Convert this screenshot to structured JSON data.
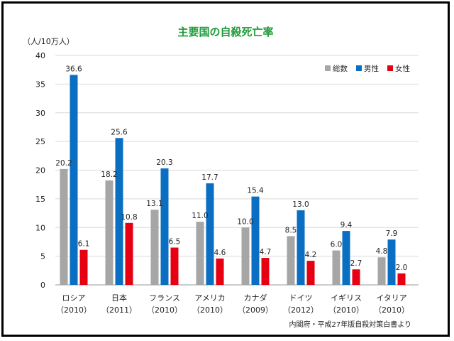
{
  "chart_data": {
    "type": "bar",
    "title": "主要国の自殺死亡率",
    "ylabel": "（人/10万人）",
    "ylim": [
      0,
      40
    ],
    "yticks": [
      0,
      5,
      10,
      15,
      20,
      25,
      30,
      35,
      40
    ],
    "grid": true,
    "legend_position": "top-right",
    "categories": [
      {
        "name": "ロシア",
        "year": "（2010）"
      },
      {
        "name": "日本",
        "year": "（2011）"
      },
      {
        "name": "フランス",
        "year": "（2010）"
      },
      {
        "name": "アメリカ",
        "year": "（2010）"
      },
      {
        "name": "カナダ",
        "year": "（2009）"
      },
      {
        "name": "ドイツ",
        "year": "（2012）"
      },
      {
        "name": "イギリス",
        "year": "（2010）"
      },
      {
        "name": "イタリア",
        "year": "（2010）"
      }
    ],
    "series": [
      {
        "name": "総数",
        "color": "#a6a6a6",
        "values": [
          20.2,
          18.2,
          13.1,
          11.0,
          10.0,
          8.5,
          6.0,
          4.8
        ],
        "labels": [
          "20.2",
          "18.2",
          "13.1",
          "11.0",
          "10.0",
          "8.5",
          "6.0",
          "4.8"
        ]
      },
      {
        "name": "男性",
        "color": "#0a6fc2",
        "values": [
          36.6,
          25.6,
          20.3,
          17.7,
          15.4,
          13.0,
          9.4,
          7.9
        ],
        "labels": [
          "36.6",
          "25.6",
          "20.3",
          "17.7",
          "15.4",
          "13.0",
          "9.4",
          "7.9"
        ]
      },
      {
        "name": "女性",
        "color": "#e60012",
        "values": [
          6.1,
          10.8,
          6.5,
          4.6,
          4.7,
          4.2,
          2.7,
          2.0
        ],
        "labels": [
          "6.1",
          "10.8",
          "6.5",
          "4.6",
          "4.7",
          "4.2",
          "2.7",
          "2.0"
        ]
      }
    ],
    "source": "内閣府・平成27年版自殺対策白書より"
  }
}
